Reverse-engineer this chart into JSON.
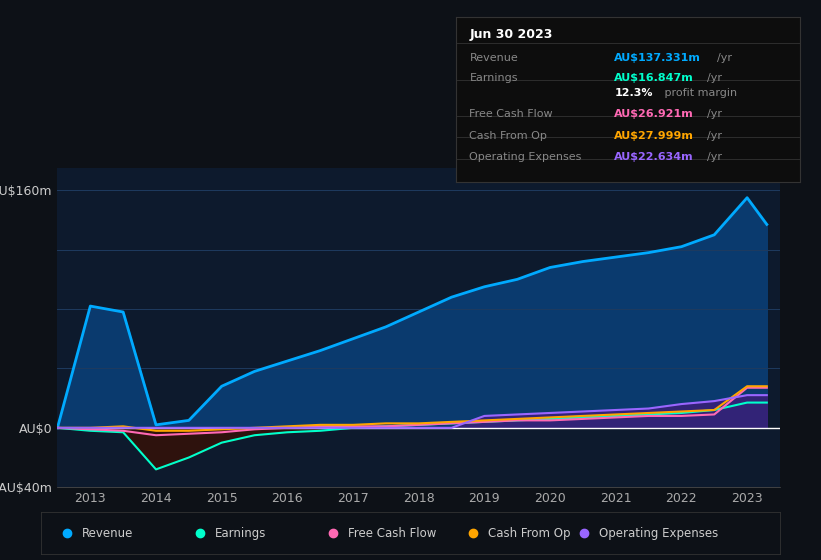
{
  "bg_color": "#0d1117",
  "chart_bg": "#0d1a2d",
  "grid_color": "#1e3a5f",
  "years": [
    2012.5,
    2013,
    2013.5,
    2014,
    2014.5,
    2015,
    2015.5,
    2016,
    2016.5,
    2017,
    2017.5,
    2018,
    2018.5,
    2019,
    2019.5,
    2020,
    2020.5,
    2021,
    2021.5,
    2022,
    2022.5,
    2023,
    2023.3
  ],
  "revenue": [
    0,
    82,
    78,
    2,
    5,
    28,
    38,
    45,
    52,
    60,
    68,
    78,
    88,
    95,
    100,
    108,
    112,
    115,
    118,
    122,
    130,
    155,
    137
  ],
  "earnings": [
    0,
    -2,
    -3,
    -28,
    -20,
    -10,
    -5,
    -3,
    -2,
    0,
    1,
    2,
    3,
    4,
    5,
    6,
    7,
    8,
    9,
    10,
    12,
    17,
    17
  ],
  "free_cash_flow": [
    0,
    -1,
    -2,
    -5,
    -4,
    -3,
    -1,
    0,
    1,
    1,
    1,
    2,
    3,
    4,
    5,
    5,
    6,
    7,
    8,
    8,
    9,
    27,
    27
  ],
  "cash_from_op": [
    0,
    0,
    1,
    -2,
    -2,
    -1,
    0,
    1,
    2,
    2,
    3,
    3,
    4,
    5,
    6,
    7,
    8,
    9,
    10,
    11,
    12,
    28,
    28
  ],
  "operating_expenses": [
    0,
    0,
    0,
    0,
    0,
    0,
    0,
    0,
    0,
    0,
    0,
    0,
    0,
    8,
    9,
    10,
    11,
    12,
    13,
    16,
    18,
    22,
    22
  ],
  "revenue_color": "#00aaff",
  "earnings_color": "#00ffcc",
  "fcf_color": "#ff69b4",
  "cashop_color": "#ffa500",
  "opex_color": "#9966ff",
  "revenue_fill": "#0a3a6e",
  "opex_fill": "#3d1e7a",
  "neg_earn_fill": "#3d1000",
  "ylim_min": -40,
  "ylim_max": 175,
  "xlim_min": 2012.5,
  "xlim_max": 2023.5,
  "xlabel_ticks": [
    2013,
    2014,
    2015,
    2016,
    2017,
    2018,
    2019,
    2020,
    2021,
    2022,
    2023
  ],
  "ytick_vals": [
    -40,
    0,
    40,
    80,
    120,
    160
  ],
  "ytick_labels": [
    "-AU$40m",
    "AU$0",
    "",
    "",
    "",
    "AU$160m"
  ],
  "info_title": "Jun 30 2023",
  "info_rows": [
    {
      "label": "Revenue",
      "value": "AU$137.331m",
      "unit": "/yr",
      "color": "#00aaff"
    },
    {
      "label": "Earnings",
      "value": "AU$16.847m",
      "unit": "/yr",
      "color": "#00ffcc"
    },
    {
      "label": "",
      "value": "12.3%",
      "unit": " profit margin",
      "color": "#ffffff"
    },
    {
      "label": "Free Cash Flow",
      "value": "AU$26.921m",
      "unit": "/yr",
      "color": "#ff69b4"
    },
    {
      "label": "Cash From Op",
      "value": "AU$27.999m",
      "unit": "/yr",
      "color": "#ffa500"
    },
    {
      "label": "Operating Expenses",
      "value": "AU$22.634m",
      "unit": "/yr",
      "color": "#9966ff"
    }
  ],
  "legend_items": [
    {
      "label": "Revenue",
      "color": "#00aaff"
    },
    {
      "label": "Earnings",
      "color": "#00ffcc"
    },
    {
      "label": "Free Cash Flow",
      "color": "#ff69b4"
    },
    {
      "label": "Cash From Op",
      "color": "#ffa500"
    },
    {
      "label": "Operating Expenses",
      "color": "#9966ff"
    }
  ]
}
